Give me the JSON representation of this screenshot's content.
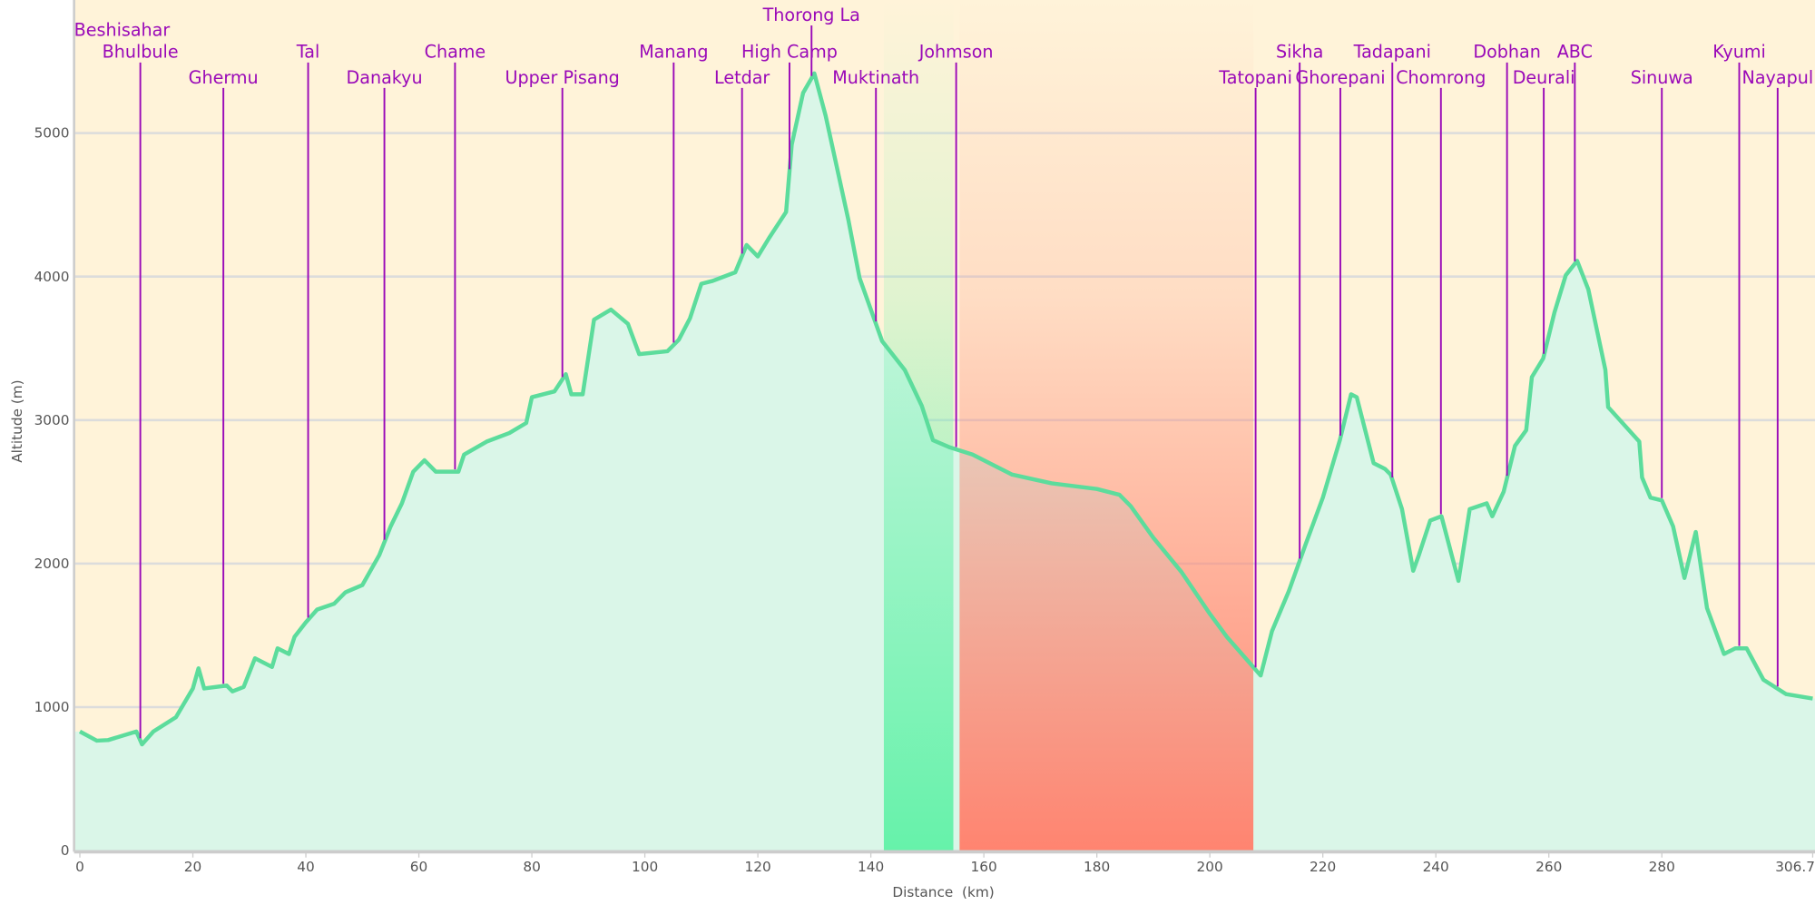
{
  "chart_data": {
    "type": "area",
    "title": "",
    "xlabel": "Distance  (km)",
    "ylabel": "Altitude (m)",
    "xlim": [
      0,
      306.7
    ],
    "ylim": [
      0,
      6000
    ],
    "x_ticks": [
      "0",
      "20",
      "40",
      "60",
      "80",
      "100",
      "120",
      "140",
      "160",
      "180",
      "200",
      "220",
      "240",
      "260",
      "280",
      "306.7"
    ],
    "x_tick_values": [
      0,
      20,
      40,
      60,
      80,
      100,
      120,
      140,
      160,
      180,
      200,
      220,
      240,
      260,
      280,
      306.7
    ],
    "y_ticks": [
      "0",
      "1000",
      "2000",
      "3000",
      "4000",
      "5000",
      "6000"
    ],
    "y_tick_values": [
      0,
      1000,
      2000,
      3000,
      4000,
      5000,
      6000
    ],
    "grid": true,
    "colors": {
      "background": "#fff3d9",
      "fill": "#daf6e8",
      "line": "#5cdc9c",
      "marker": "#9a09b8",
      "band_green": "#66f2aa",
      "band_red": "#ff8470"
    },
    "bands": [
      {
        "from": 142.3,
        "to": 154.6,
        "color": "#66f2aa"
      },
      {
        "from": 155.7,
        "to": 207.7,
        "color": "#ff8470"
      }
    ],
    "profile": [
      [
        0,
        830
      ],
      [
        3,
        766
      ],
      [
        5,
        770
      ],
      [
        10,
        830
      ],
      [
        11,
        740
      ],
      [
        13,
        830
      ],
      [
        17,
        930
      ],
      [
        20,
        1130
      ],
      [
        21,
        1270
      ],
      [
        22,
        1130
      ],
      [
        26,
        1150
      ],
      [
        27,
        1110
      ],
      [
        29,
        1140
      ],
      [
        31,
        1340
      ],
      [
        34,
        1280
      ],
      [
        35,
        1410
      ],
      [
        37,
        1370
      ],
      [
        38,
        1490
      ],
      [
        40,
        1590
      ],
      [
        42,
        1680
      ],
      [
        45,
        1720
      ],
      [
        47,
        1800
      ],
      [
        50,
        1850
      ],
      [
        53,
        2060
      ],
      [
        55,
        2260
      ],
      [
        57,
        2420
      ],
      [
        59,
        2640
      ],
      [
        61,
        2720
      ],
      [
        63,
        2640
      ],
      [
        67,
        2640
      ],
      [
        68,
        2760
      ],
      [
        72,
        2850
      ],
      [
        76,
        2910
      ],
      [
        79,
        2980
      ],
      [
        80,
        3160
      ],
      [
        84,
        3200
      ],
      [
        86,
        3320
      ],
      [
        87,
        3180
      ],
      [
        89,
        3180
      ],
      [
        91,
        3700
      ],
      [
        94,
        3770
      ],
      [
        97,
        3670
      ],
      [
        99,
        3460
      ],
      [
        104,
        3480
      ],
      [
        106,
        3560
      ],
      [
        108,
        3710
      ],
      [
        110,
        3950
      ],
      [
        112,
        3970
      ],
      [
        116,
        4030
      ],
      [
        118,
        4220
      ],
      [
        120,
        4140
      ],
      [
        122,
        4270
      ],
      [
        125,
        4450
      ],
      [
        126,
        4920
      ],
      [
        128,
        5280
      ],
      [
        130,
        5416
      ],
      [
        132,
        5120
      ],
      [
        136,
        4400
      ],
      [
        138,
        3990
      ],
      [
        142,
        3550
      ],
      [
        146,
        3350
      ],
      [
        149,
        3100
      ],
      [
        151,
        2860
      ],
      [
        154,
        2810
      ],
      [
        158,
        2760
      ],
      [
        165,
        2620
      ],
      [
        172,
        2560
      ],
      [
        180,
        2520
      ],
      [
        184,
        2480
      ],
      [
        186,
        2400
      ],
      [
        190,
        2180
      ],
      [
        195,
        1940
      ],
      [
        200,
        1650
      ],
      [
        203,
        1490
      ],
      [
        207,
        1310
      ],
      [
        209,
        1220
      ],
      [
        211,
        1530
      ],
      [
        214,
        1810
      ],
      [
        217,
        2140
      ],
      [
        220,
        2460
      ],
      [
        223,
        2860
      ],
      [
        225,
        3180
      ],
      [
        226,
        3160
      ],
      [
        229,
        2700
      ],
      [
        231,
        2660
      ],
      [
        232,
        2620
      ],
      [
        234,
        2380
      ],
      [
        236,
        1950
      ],
      [
        237,
        2060
      ],
      [
        239,
        2300
      ],
      [
        241,
        2330
      ],
      [
        244,
        1880
      ],
      [
        246,
        2380
      ],
      [
        249,
        2420
      ],
      [
        250,
        2330
      ],
      [
        252,
        2500
      ],
      [
        254,
        2820
      ],
      [
        256,
        2930
      ],
      [
        257,
        3300
      ],
      [
        259,
        3430
      ],
      [
        261,
        3750
      ],
      [
        263,
        4010
      ],
      [
        265,
        4110
      ],
      [
        267,
        3910
      ],
      [
        270,
        3350
      ],
      [
        270.5,
        3090
      ],
      [
        276,
        2850
      ],
      [
        276.5,
        2600
      ],
      [
        278,
        2460
      ],
      [
        280,
        2440
      ],
      [
        282,
        2260
      ],
      [
        284,
        1900
      ],
      [
        286,
        2220
      ],
      [
        288,
        1690
      ],
      [
        291,
        1370
      ],
      [
        293,
        1410
      ],
      [
        295,
        1410
      ],
      [
        298,
        1190
      ],
      [
        302,
        1090
      ],
      [
        306.7,
        1060
      ]
    ],
    "waypoints": [
      {
        "name": "Beshisahar",
        "km": 0,
        "row": 1
      },
      {
        "name": "Bhulbule",
        "km": 10.7,
        "row": 2
      },
      {
        "name": "Ghermu",
        "km": 25.4,
        "row": 3
      },
      {
        "name": "Tal",
        "km": 40.4,
        "row": 2
      },
      {
        "name": "Danakyu",
        "km": 53.9,
        "row": 3
      },
      {
        "name": "Chame",
        "km": 66.4,
        "row": 2
      },
      {
        "name": "Upper Pisang",
        "km": 85.4,
        "row": 3
      },
      {
        "name": "Manang",
        "km": 105.1,
        "row": 2
      },
      {
        "name": "Letdar",
        "km": 117.2,
        "row": 3
      },
      {
        "name": "High Camp",
        "km": 125.6,
        "row": 2
      },
      {
        "name": "Thorong La",
        "km": 129.5,
        "row": 0
      },
      {
        "name": "Muktinath",
        "km": 140.9,
        "row": 3
      },
      {
        "name": "Johmson",
        "km": 155.1,
        "row": 2
      },
      {
        "name": "Tatopani",
        "km": 208.1,
        "row": 3
      },
      {
        "name": "Sikha",
        "km": 215.9,
        "row": 2
      },
      {
        "name": "Ghorepani",
        "km": 223.1,
        "row": 3
      },
      {
        "name": "Tadapani",
        "km": 232.3,
        "row": 2
      },
      {
        "name": "Chomrong",
        "km": 240.9,
        "row": 3
      },
      {
        "name": "Dobhan",
        "km": 252.6,
        "row": 2
      },
      {
        "name": "Deurali",
        "km": 259.1,
        "row": 3
      },
      {
        "name": "ABC",
        "km": 264.6,
        "row": 2
      },
      {
        "name": "Sinuwa",
        "km": 280,
        "row": 3
      },
      {
        "name": "Kyumi",
        "km": 293.7,
        "row": 2
      },
      {
        "name": "Nayapul",
        "km": 300.5,
        "row": 3
      }
    ]
  }
}
